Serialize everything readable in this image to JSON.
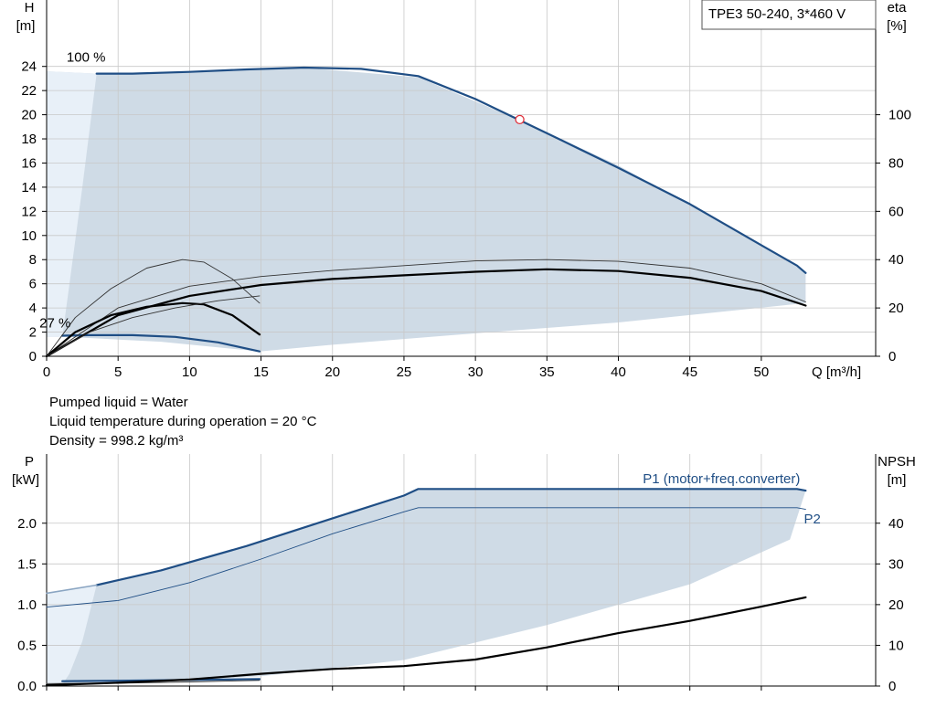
{
  "info": {
    "liquid": "Pumped liquid = Water",
    "temperature": "Liquid temperature during operation = 20 °C",
    "density": "Density = 998.2 kg/m³"
  },
  "colors": {
    "envelope": "#cfdbe6",
    "envelope_light": "#e8f0f8",
    "curve_blue": "#1f4e85",
    "curve_black": "#000000",
    "grid": "#c8c8c8",
    "duty_point": "#e0303a"
  },
  "chart_data": [
    {
      "id": "qh",
      "type": "line",
      "title": "TPE3 50-240, 3*460 V",
      "xlabel": "Q [m³/h]",
      "ylabel_top": "H",
      "ylabel_unit": "[m]",
      "y2label_top": "eta",
      "y2label_unit": "[%]",
      "xlim": [
        0,
        58
      ],
      "ylim": [
        0,
        29.5
      ],
      "y2lim": [
        0,
        147.5
      ],
      "xticks": [
        0,
        5,
        10,
        15,
        20,
        25,
        30,
        35,
        40,
        45,
        50
      ],
      "yticks": [
        0,
        2,
        4,
        6,
        8,
        10,
        12,
        14,
        16,
        18,
        20,
        22,
        24
      ],
      "y2ticks": [
        0,
        20,
        40,
        60,
        80,
        100
      ],
      "grid": true,
      "envelope": [
        [
          0,
          23.6
        ],
        [
          3.5,
          23.4
        ],
        [
          10,
          23.6
        ],
        [
          18,
          23.9
        ],
        [
          26,
          23.1
        ],
        [
          33,
          19.6
        ],
        [
          40,
          15.8
        ],
        [
          47,
          11.2
        ],
        [
          52.5,
          7.4
        ],
        [
          53.1,
          6.9
        ],
        [
          53.1,
          4.4
        ],
        [
          40,
          2.8
        ],
        [
          30,
          1.9
        ],
        [
          20,
          0.95
        ],
        [
          14.9,
          0.4
        ],
        [
          8,
          1.2
        ],
        [
          1.4,
          1.6
        ],
        [
          0,
          1.6
        ]
      ],
      "envelope_light": [
        [
          0,
          23.6
        ],
        [
          3.5,
          23.4
        ],
        [
          2.5,
          14
        ],
        [
          1.6,
          6
        ],
        [
          1.1,
          1.6
        ],
        [
          0,
          1.6
        ]
      ],
      "annotations": [
        {
          "text": "100 %",
          "x": 1.4,
          "y": 24.4
        },
        {
          "text": "27 %",
          "x": -0.5,
          "y": 2.4
        }
      ],
      "series": [
        {
          "role": "head-max",
          "axis": "left",
          "style": "blue-thick",
          "points": [
            [
              3.5,
              23.4
            ],
            [
              6,
              23.4
            ],
            [
              10,
              23.55
            ],
            [
              14,
              23.75
            ],
            [
              18,
              23.9
            ],
            [
              22,
              23.8
            ],
            [
              26,
              23.2
            ],
            [
              30,
              21.3
            ],
            [
              33,
              19.6
            ],
            [
              36,
              17.9
            ],
            [
              40,
              15.6
            ],
            [
              45,
              12.6
            ],
            [
              50,
              9.2
            ],
            [
              52.5,
              7.5
            ],
            [
              53.1,
              6.9
            ]
          ]
        },
        {
          "role": "head-min",
          "axis": "left",
          "style": "blue-thick",
          "points": [
            [
              1.1,
              1.7
            ],
            [
              3,
              1.75
            ],
            [
              6,
              1.75
            ],
            [
              9,
              1.6
            ],
            [
              12,
              1.15
            ],
            [
              14.9,
              0.4
            ]
          ]
        },
        {
          "role": "eta-motor-max",
          "axis": "right",
          "style": "black-thin",
          "points": [
            [
              0,
              0
            ],
            [
              5,
              20
            ],
            [
              10,
              29
            ],
            [
              15,
              33
            ],
            [
              20,
              35.5
            ],
            [
              25,
              37.5
            ],
            [
              30,
              39.5
            ],
            [
              35,
              40
            ],
            [
              40,
              39.3
            ],
            [
              45,
              36.5
            ],
            [
              50,
              30
            ],
            [
              53.1,
              22.5
            ]
          ]
        },
        {
          "role": "eta-pump-max",
          "axis": "right",
          "style": "black-thick",
          "points": [
            [
              0,
              0
            ],
            [
              5,
              17
            ],
            [
              10,
              25
            ],
            [
              15,
              29.5
            ],
            [
              20,
              32
            ],
            [
              25,
              33.5
            ],
            [
              30,
              35
            ],
            [
              35,
              36
            ],
            [
              40,
              35.3
            ],
            [
              45,
              32.5
            ],
            [
              50,
              27
            ],
            [
              53.1,
              21
            ]
          ]
        },
        {
          "role": "eta-motor-min",
          "axis": "right",
          "style": "black-thin",
          "points": [
            [
              0,
              0
            ],
            [
              2,
              16
            ],
            [
              4.5,
              28
            ],
            [
              7,
              36.5
            ],
            [
              9.5,
              40
            ],
            [
              11,
              39
            ],
            [
              13,
              32
            ],
            [
              14.9,
              22
            ]
          ]
        },
        {
          "role": "eta-pump-min",
          "axis": "right",
          "style": "black-thick",
          "points": [
            [
              0,
              0
            ],
            [
              2,
              10
            ],
            [
              4.5,
              17
            ],
            [
              7,
              20.5
            ],
            [
              9.5,
              22
            ],
            [
              11,
              21.5
            ],
            [
              13,
              17
            ],
            [
              14.9,
              9
            ]
          ]
        },
        {
          "role": "eta-thin-min-2",
          "axis": "right",
          "style": "black-thin",
          "points": [
            [
              0,
              0
            ],
            [
              3,
              10
            ],
            [
              6,
              16
            ],
            [
              9,
              20
            ],
            [
              12,
              23
            ],
            [
              14.9,
              25
            ]
          ]
        }
      ],
      "duty_point": {
        "x": 33.1,
        "y": 19.6
      }
    },
    {
      "id": "power",
      "type": "line",
      "ylabel_top": "P",
      "ylabel_unit": "[kW]",
      "y2label_top": "NPSH",
      "y2label_unit": "[m]",
      "xlim": [
        0,
        58
      ],
      "ylim": [
        0,
        2.85
      ],
      "y2lim": [
        0,
        57
      ],
      "xticks": [
        0,
        5,
        10,
        15,
        20,
        25,
        30,
        35,
        40,
        45,
        50
      ],
      "yticks": [
        "0.0",
        "0.5",
        "1.0",
        "1.5",
        "2.0"
      ],
      "yticks_values": [
        0,
        0.5,
        1.0,
        1.5,
        2.0
      ],
      "y2ticks": [
        0,
        10,
        20,
        30,
        40
      ],
      "grid": true,
      "envelope": [
        [
          0,
          1.14
        ],
        [
          3.5,
          1.24
        ],
        [
          8,
          1.42
        ],
        [
          14,
          1.72
        ],
        [
          20,
          2.06
        ],
        [
          25,
          2.33
        ],
        [
          26,
          2.42
        ],
        [
          40,
          2.42
        ],
        [
          52.5,
          2.42
        ],
        [
          53.1,
          2.4
        ],
        [
          52,
          1.8
        ],
        [
          45,
          1.25
        ],
        [
          35,
          0.75
        ],
        [
          25,
          0.32
        ],
        [
          15,
          0.12
        ],
        [
          8,
          0.06
        ],
        [
          1.4,
          0.02
        ],
        [
          0,
          0.02
        ]
      ],
      "envelope_light": [
        [
          0,
          1.14
        ],
        [
          3.5,
          1.24
        ],
        [
          2.5,
          0.55
        ],
        [
          1.6,
          0.15
        ],
        [
          1.1,
          0.02
        ],
        [
          0,
          0.02
        ]
      ],
      "labels": [
        {
          "text": "P1 (motor+freq.converter)",
          "x": 53.1,
          "y": 2.49,
          "anchor": "end"
        },
        {
          "text": "P2",
          "x": 52.6,
          "y": 2.0,
          "anchor": "start"
        }
      ],
      "series": [
        {
          "role": "P1-max",
          "axis": "left",
          "style": "blue-thick",
          "points": [
            [
              3.5,
              1.24
            ],
            [
              8,
              1.42
            ],
            [
              14,
              1.72
            ],
            [
              20,
              2.06
            ],
            [
              25,
              2.34
            ],
            [
              26,
              2.42
            ],
            [
              40,
              2.42
            ],
            [
              52.5,
              2.42
            ],
            [
              53.1,
              2.4
            ]
          ]
        },
        {
          "role": "P1-max-faint",
          "axis": "left",
          "style": "blue-faint",
          "points": [
            [
              0,
              1.14
            ],
            [
              3.5,
              1.24
            ]
          ]
        },
        {
          "role": "P2-max",
          "axis": "left",
          "style": "blue-thin",
          "points": [
            [
              0,
              0.97
            ],
            [
              5,
              1.05
            ],
            [
              10,
              1.27
            ],
            [
              15,
              1.56
            ],
            [
              20,
              1.87
            ],
            [
              25,
              2.14
            ],
            [
              26,
              2.19
            ],
            [
              40,
              2.19
            ],
            [
              52.5,
              2.19
            ],
            [
              53.1,
              2.17
            ]
          ]
        },
        {
          "role": "P1-min",
          "axis": "left",
          "style": "blue-thick",
          "points": [
            [
              1.1,
              0.06
            ],
            [
              5,
              0.065
            ],
            [
              10,
              0.075
            ],
            [
              14.9,
              0.085
            ]
          ]
        },
        {
          "role": "P2-min",
          "axis": "left",
          "style": "black-thin",
          "points": [
            [
              0,
              0.03
            ],
            [
              5,
              0.035
            ],
            [
              10,
              0.05
            ],
            [
              14.9,
              0.07
            ]
          ]
        },
        {
          "role": "NPSH",
          "axis": "right",
          "style": "black-thick",
          "points": [
            [
              0,
              0.2
            ],
            [
              5,
              0.8
            ],
            [
              10,
              1.6
            ],
            [
              15,
              3.0
            ],
            [
              20,
              4.2
            ],
            [
              25,
              4.9
            ],
            [
              30,
              6.5
            ],
            [
              35,
              9.5
            ],
            [
              40,
              13
            ],
            [
              45,
              16
            ],
            [
              50,
              19.5
            ],
            [
              53.1,
              21.8
            ]
          ]
        }
      ]
    }
  ]
}
